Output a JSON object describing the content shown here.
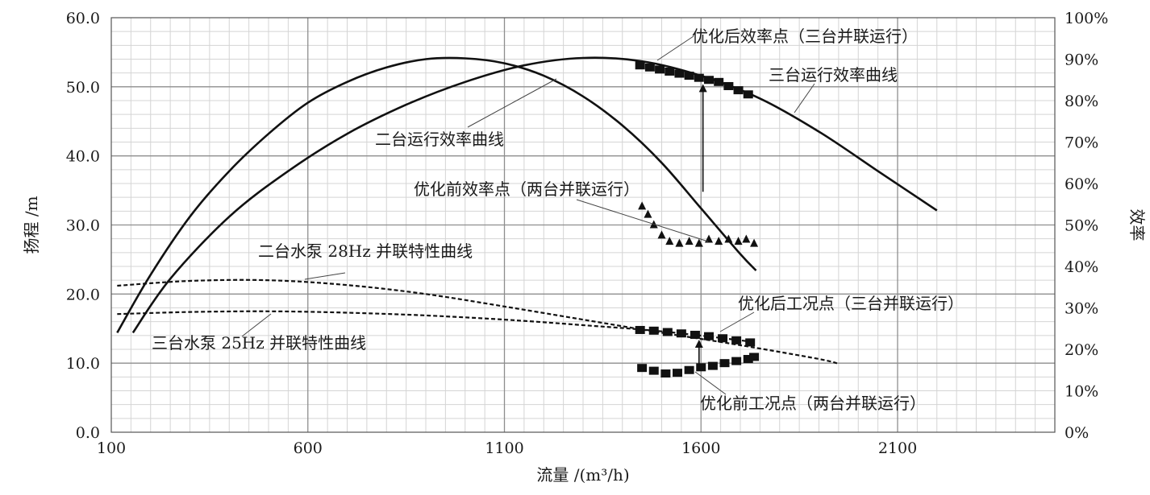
{
  "chart_data": {
    "type": "line",
    "x_axis": {
      "label": "流量 /(m³/h)",
      "range": [
        100,
        2500
      ],
      "ticks": [
        100,
        600,
        1100,
        1600,
        2100
      ],
      "tick_labels": [
        "100",
        "600",
        "1100",
        "1600",
        "2100"
      ]
    },
    "y_axis_left": {
      "label": "扬程 /m",
      "range": [
        0,
        60
      ],
      "ticks": [
        0,
        10,
        20,
        30,
        40,
        50,
        60
      ],
      "tick_labels": [
        "0.0",
        "10.0",
        "20.0",
        "30.0",
        "40.0",
        "50.0",
        "60.0"
      ]
    },
    "y_axis_right": {
      "label": "效率",
      "range": [
        0,
        100
      ],
      "ticks": [
        0,
        10,
        20,
        30,
        40,
        50,
        60,
        70,
        80,
        90,
        100
      ],
      "tick_labels": [
        "0%",
        "10%",
        "20%",
        "30%",
        "40%",
        "50%",
        "60%",
        "70%",
        "80%",
        "90%",
        "100%"
      ]
    },
    "grid": true,
    "series": [
      {
        "name": "二台运行效率曲线",
        "axis": "right",
        "style": "solid",
        "x": [
          115,
          200,
          300,
          400,
          500,
          600,
          700,
          800,
          900,
          1000,
          1100,
          1200,
          1300,
          1400,
          1500,
          1600,
          1700,
          1740
        ],
        "y": [
          24,
          38,
          52,
          63,
          72,
          79.5,
          84.5,
          88,
          90,
          90.2,
          89,
          86,
          81,
          74,
          65,
          54,
          43,
          39
        ]
      },
      {
        "name": "三台运行效率曲线",
        "axis": "right",
        "style": "solid",
        "x": [
          155,
          250,
          400,
          550,
          700,
          850,
          1000,
          1150,
          1300,
          1450,
          1600,
          1750,
          1900,
          2050,
          2200
        ],
        "y": [
          24,
          37,
          52,
          63,
          72,
          79,
          84.5,
          88.5,
          90.3,
          89.5,
          86,
          80.5,
          72.5,
          63,
          53.5
        ]
      },
      {
        "name": "二台水泵 28Hz 并联特性曲线",
        "axis": "left",
        "style": "dashed",
        "x": [
          115,
          300,
          500,
          700,
          900,
          1100,
          1300,
          1500,
          1700,
          1900,
          1950
        ],
        "y": [
          21.2,
          21.9,
          22,
          21.3,
          20,
          18.2,
          16.3,
          14.4,
          12.6,
          10.6,
          9.9
        ]
      },
      {
        "name": "三台水泵 25Hz 并联特性曲线",
        "axis": "left",
        "style": "dashed",
        "x": [
          115,
          300,
          500,
          700,
          900,
          1100,
          1300,
          1500,
          1700,
          1730
        ],
        "y": [
          17.1,
          17.4,
          17.5,
          17.3,
          16.9,
          16.3,
          15.5,
          14.6,
          13.3,
          13
        ]
      }
    ],
    "markers": [
      {
        "name": "优化后效率点（三台并联运行）",
        "axis": "right",
        "shape": "square",
        "x": [
          1445,
          1470,
          1495,
          1520,
          1545,
          1570,
          1595,
          1620,
          1645,
          1670,
          1695,
          1720
        ],
        "y": [
          88.5,
          88,
          87.5,
          87,
          86.5,
          86,
          85.5,
          85,
          84.5,
          83.5,
          82.5,
          81.5
        ]
      },
      {
        "name": "优化前效率点（两台并联运行）",
        "axis": "right",
        "shape": "triangle",
        "x": [
          1450,
          1465,
          1480,
          1500,
          1520,
          1545,
          1570,
          1595,
          1620,
          1645,
          1670,
          1695,
          1715,
          1735
        ],
        "y": [
          54.5,
          52.5,
          50,
          47.5,
          46,
          45.5,
          46,
          45.5,
          46.5,
          46,
          46.5,
          46,
          46.5,
          45.5
        ]
      },
      {
        "name": "优化后工况点（三台并联运行）",
        "axis": "left",
        "shape": "square",
        "x": [
          1445,
          1480,
          1515,
          1550,
          1585,
          1620,
          1655,
          1690,
          1725
        ],
        "y": [
          14.8,
          14.7,
          14.5,
          14.3,
          14.1,
          13.9,
          13.6,
          13.3,
          13
        ]
      },
      {
        "name": "优化前工况点（两台并联运行）",
        "axis": "left",
        "shape": "square",
        "x": [
          1450,
          1480,
          1510,
          1540,
          1570,
          1600,
          1630,
          1660,
          1690,
          1720,
          1735
        ],
        "y": [
          9.3,
          8.9,
          8.5,
          8.6,
          9,
          9.4,
          9.6,
          10,
          10.3,
          10.6,
          10.9
        ]
      }
    ],
    "annotations": [
      {
        "text": "优化后效率点（三台并联运行）"
      },
      {
        "text": "三台运行效率曲线"
      },
      {
        "text": "二台运行效率曲线"
      },
      {
        "text": "优化前效率点（两台并联运行）"
      },
      {
        "text": "二台水泵 28Hz 并联特性曲线"
      },
      {
        "text": "优化后工况点（三台并联运行）"
      },
      {
        "text": "三台水泵 25Hz 并联特性曲线"
      },
      {
        "text": "优化前工况点（两台并联运行）"
      }
    ]
  }
}
